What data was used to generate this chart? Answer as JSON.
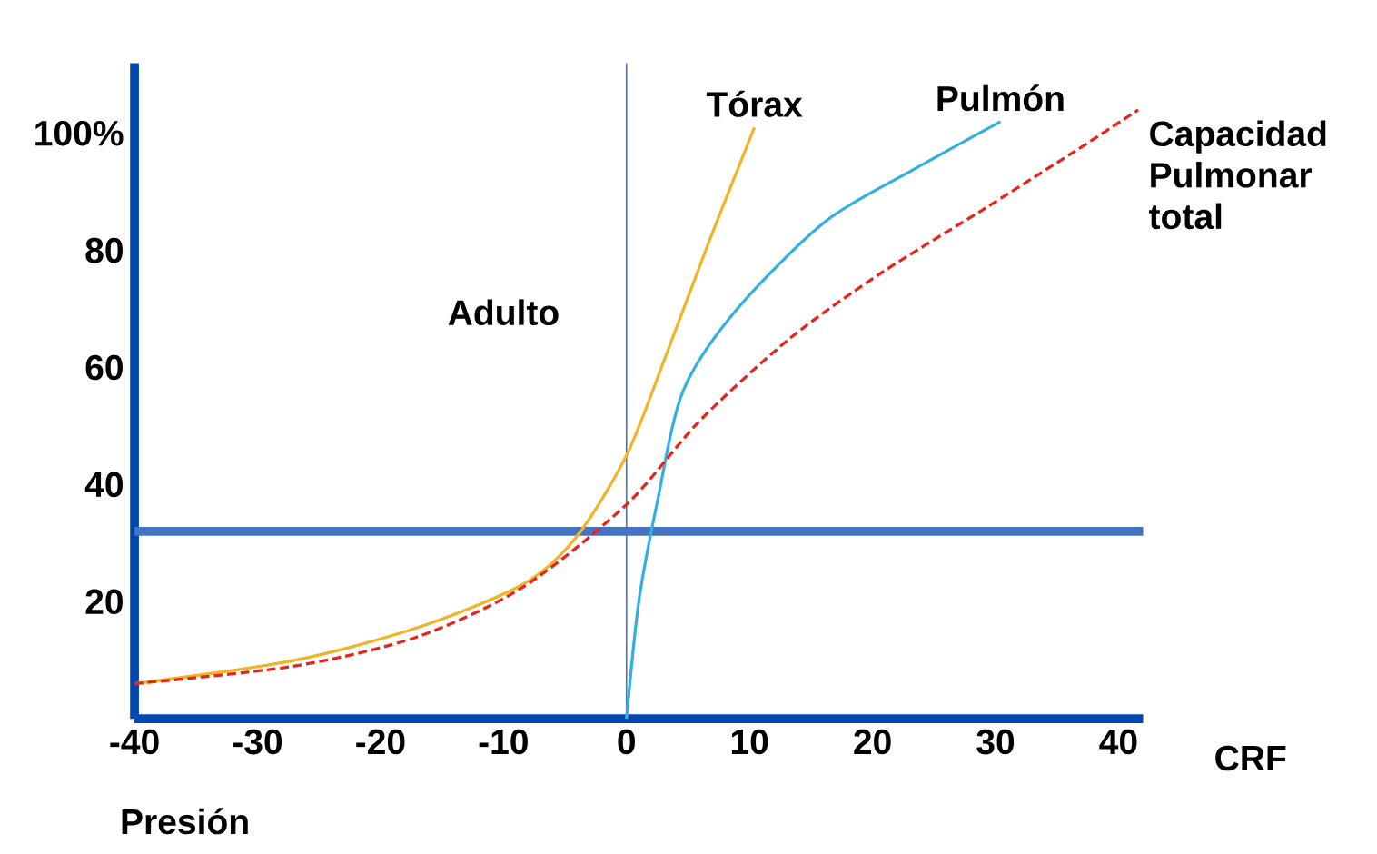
{
  "chart_data": {
    "type": "line",
    "xlabel": "Presión",
    "xlim": [
      -40,
      42
    ],
    "ylim": [
      0,
      112
    ],
    "xticks": [
      -40,
      -30,
      -20,
      -10,
      0,
      10,
      20,
      30,
      40
    ],
    "yticks": [
      20,
      40,
      60,
      80,
      {
        "value": 100,
        "label": "100%"
      }
    ],
    "legend": false,
    "grid": false,
    "marker": "none",
    "series": [
      {
        "name": "Tórax",
        "color": "#f0b429",
        "x": [
          -40,
          -27.2,
          -17.1,
          -8.4,
          -4.1,
          0,
          3.2,
          6.8,
          10.4
        ],
        "values": [
          6,
          9.9,
          15.5,
          23,
          31,
          45,
          62,
          82,
          101
        ]
      },
      {
        "name": "Pulmón",
        "color": "#33b0e0",
        "x": [
          0,
          1,
          2.5,
          4.6,
          9,
          16.2,
          23.5,
          30.4
        ],
        "values": [
          0,
          20,
          37,
          56,
          70,
          85,
          94,
          102
        ]
      },
      {
        "name": "Capacidad Pulmonar total",
        "color": "#e8241c",
        "line_style": "dashed",
        "x": [
          -40,
          -27,
          -17,
          -8.4,
          0,
          6,
          13.3,
          20.6,
          29,
          36.5,
          41.6
        ],
        "values": [
          6,
          9,
          14,
          22.5,
          36.6,
          51,
          65,
          76,
          87,
          97,
          104
        ]
      }
    ],
    "ref_lines": [
      {
        "axis": "y",
        "value": 32,
        "color": "#4472c4"
      },
      {
        "axis": "x",
        "value": 0,
        "color": "#4472c4"
      }
    ],
    "annotations": [
      "Adulto",
      "CRF"
    ]
  }
}
